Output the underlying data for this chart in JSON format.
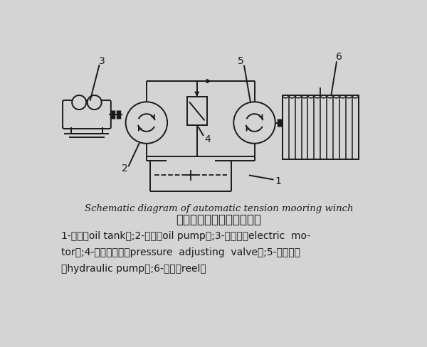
{
  "bg_color": "#d4d4d4",
  "line_color": "#1a1a1a",
  "title_en": "Schematic diagram of automatic tension mooring winch",
  "title_cn": "自动张力绞缆机原理示意图",
  "cap1": "1-油笱（oil tank）;2-油泵（oil pump）;3-电动机（electric  mo-",
  "cap2": "tor）;4-压力调节阀（pressure  adjusting  valve）;5-液压马达",
  "cap3": "（hydraulic pump）;6-卷筒（reel）",
  "label_fontsize": 10,
  "caption_fontsize": 10
}
